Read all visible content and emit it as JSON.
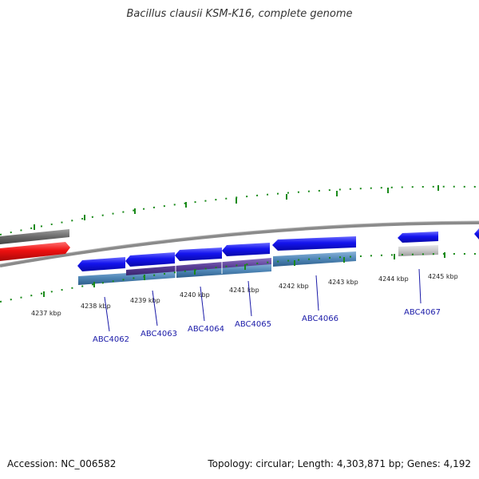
{
  "title": "Bacillus clausii KSM-K16, complete genome",
  "footer": {
    "accession": "Accession: NC_006582",
    "stats": "Topology: circular; Length: 4,303,871 bp; Genes: 4,192"
  },
  "colors": {
    "backbone": "#8a8a8a",
    "forward_gene": "#1010e8",
    "reverse_gene": "#e81010",
    "gene_label": "#1a1aa8",
    "tick": "#1a8a1a",
    "match_bar": "#4f86b6",
    "match_overlap": "#5a3e96",
    "grey_feature": "#6e6e6e",
    "light_grey_feature": "#c8c8c8"
  },
  "kbp_ticks": [
    "4237 kbp",
    "4238 kbp",
    "4239 kbp",
    "4240 kbp",
    "4241 kbp",
    "4242 kbp",
    "4243 kbp",
    "4244 kbp",
    "4245 kbp"
  ],
  "genes": [
    {
      "name": "ABC4062"
    },
    {
      "name": "ABC4063"
    },
    {
      "name": "ABC4064"
    },
    {
      "name": "ABC4065"
    },
    {
      "name": "ABC4066"
    },
    {
      "name": "ABC4067"
    }
  ]
}
